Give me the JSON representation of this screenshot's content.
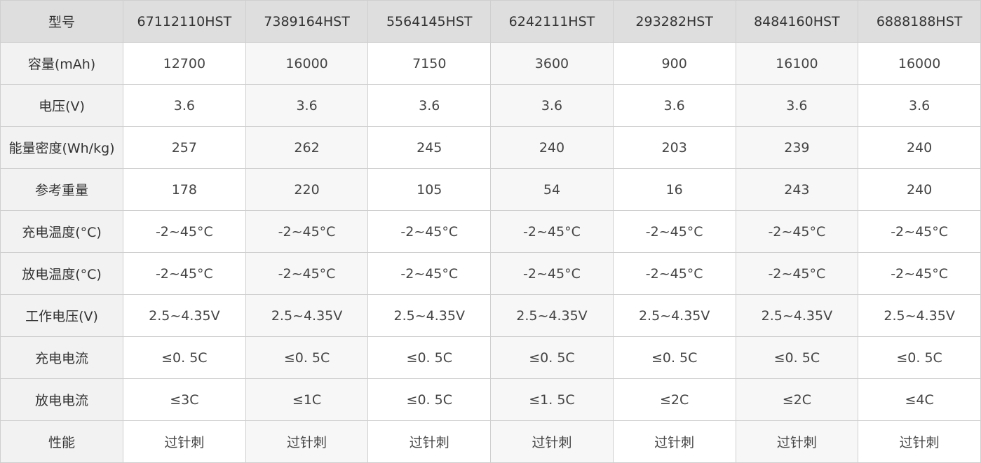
{
  "table": {
    "header": [
      "型号",
      "67112110HST",
      "7389164HST",
      "5564145HST",
      "6242111HST",
      "293282HST",
      "8484160HST",
      "6888188HST"
    ],
    "rows": [
      [
        "容量(mAh)",
        "12700",
        "16000",
        "7150",
        "3600",
        "900",
        "16100",
        "16000"
      ],
      [
        "电压(V)",
        "3.6",
        "3.6",
        "3.6",
        "3.6",
        "3.6",
        "3.6",
        "3.6"
      ],
      [
        "能量密度(Wh/kg)",
        "257",
        "262",
        "245",
        "240",
        "203",
        "239",
        "240"
      ],
      [
        "参考重量",
        "178",
        "220",
        "105",
        "54",
        "16",
        "243",
        "240"
      ],
      [
        "充电温度(°C)",
        "-2~45°C",
        "-2~45°C",
        "-2~45°C",
        "-2~45°C",
        "-2~45°C",
        "-2~45°C",
        "-2~45°C"
      ],
      [
        "放电温度(°C)",
        "-2~45°C",
        "-2~45°C",
        "-2~45°C",
        "-2~45°C",
        "-2~45°C",
        "-2~45°C",
        "-2~45°C"
      ],
      [
        "工作电压(V)",
        "2.5~4.35V",
        "2.5~4.35V",
        "2.5~4.35V",
        "2.5~4.35V",
        "2.5~4.35V",
        "2.5~4.35V",
        "2.5~4.35V"
      ],
      [
        "充电电流",
        "≤0. 5C",
        "≤0. 5C",
        "≤0. 5C",
        "≤0. 5C",
        "≤0. 5C",
        "≤0. 5C",
        "≤0. 5C"
      ],
      [
        "放电电流",
        "≤3C",
        "≤1C",
        "≤0. 5C",
        "≤1. 5C",
        "≤2C",
        "≤2C",
        "≤4C"
      ],
      [
        "性能",
        "过针刺",
        "过针刺",
        "过针刺",
        "过针刺",
        "过针刺",
        "过针刺",
        "过针刺"
      ]
    ]
  }
}
